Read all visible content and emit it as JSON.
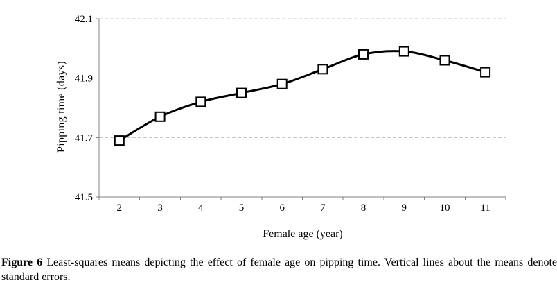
{
  "chart_data": {
    "type": "line",
    "x": [
      2,
      3,
      4,
      5,
      6,
      7,
      8,
      9,
      10,
      11
    ],
    "x_labels": [
      "2",
      "3",
      "4",
      "5",
      "6",
      "7",
      "8",
      "9",
      "10",
      "11"
    ],
    "values": [
      41.69,
      41.77,
      41.82,
      41.85,
      41.88,
      41.93,
      41.98,
      41.99,
      41.96,
      41.92
    ],
    "xlabel": "Female age (year)",
    "ylabel": "Pipping time (days)",
    "ylim": [
      41.5,
      42.1
    ],
    "yticks": [
      41.5,
      41.7,
      41.9,
      42.1
    ],
    "ytick_labels": [
      "41.5",
      "41.7",
      "41.9",
      "42.1"
    ],
    "grid": "horizontal-dashed",
    "legend": "none",
    "marker": "open-square",
    "smoothed": true,
    "colors": {
      "line": "#000000",
      "marker_fill": "#ffffff",
      "grid": "#c8c8c8",
      "axis": "#808080",
      "text": "#000000",
      "background": "#ffffff"
    }
  },
  "caption": {
    "label": "Figure 6",
    "text": " Least-squares means depicting the effect of female age on pipping time. Vertical lines about the means denote standard errors."
  }
}
